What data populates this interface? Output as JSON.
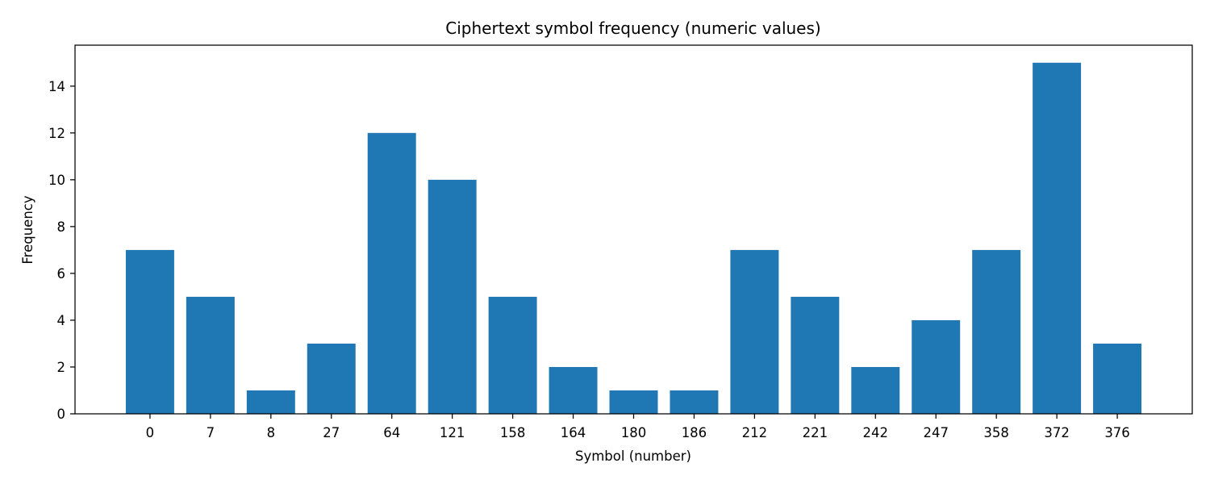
{
  "chart_data": {
    "type": "bar",
    "title": "Ciphertext symbol frequency (numeric values)",
    "xlabel": "Symbol (number)",
    "ylabel": "Frequency",
    "categories": [
      "0",
      "7",
      "8",
      "27",
      "64",
      "121",
      "158",
      "164",
      "180",
      "186",
      "212",
      "221",
      "242",
      "247",
      "358",
      "372",
      "376"
    ],
    "values": [
      7,
      5,
      1,
      3,
      12,
      10,
      5,
      2,
      1,
      1,
      7,
      5,
      2,
      4,
      7,
      15,
      3
    ],
    "ylim": [
      0,
      15.75
    ],
    "yticks": [
      0,
      2,
      4,
      6,
      8,
      10,
      12,
      14
    ],
    "grid": false,
    "colors": {
      "bar": "#1f77b4"
    }
  }
}
